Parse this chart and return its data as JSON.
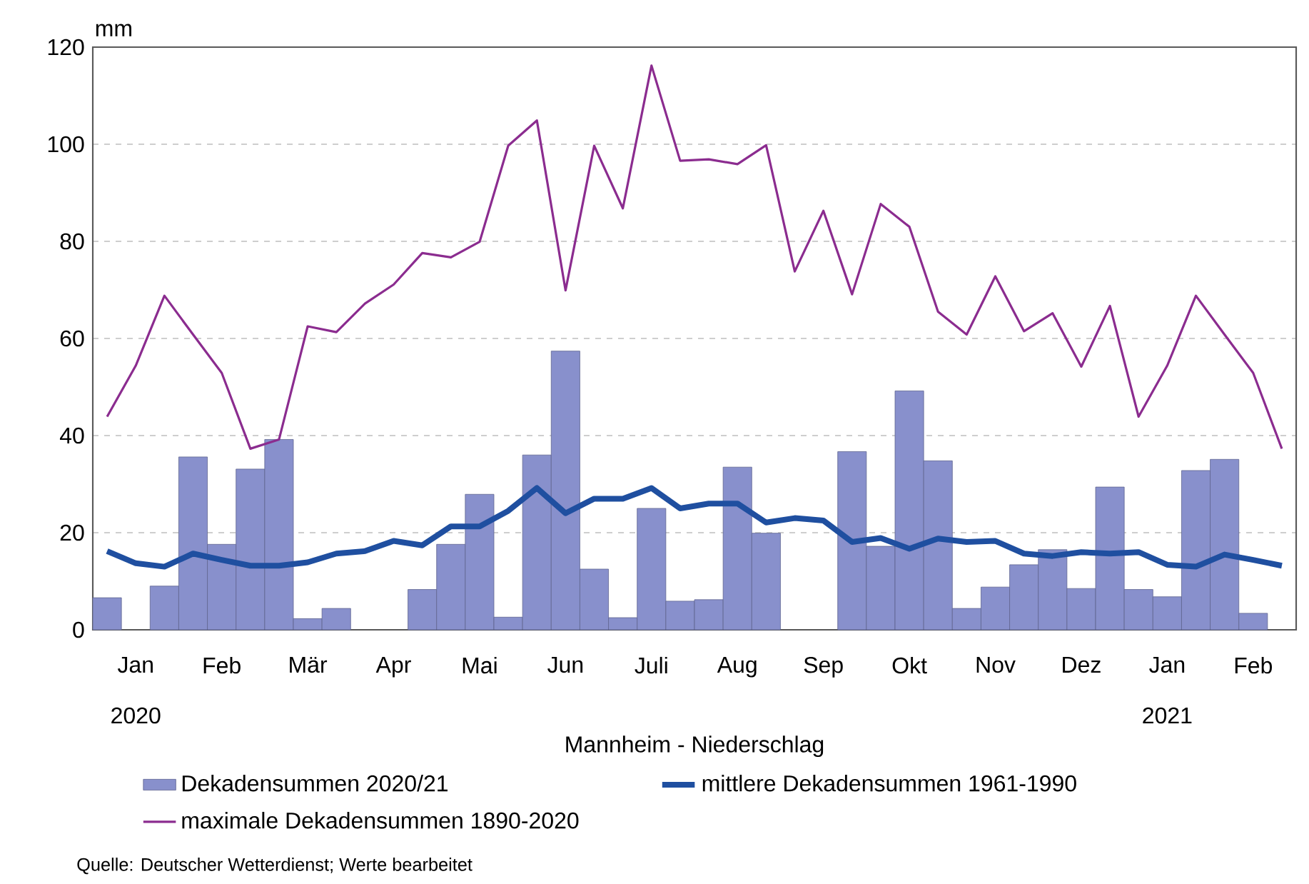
{
  "chart_data": {
    "type": "bar",
    "title": "Mannheim - Niederschlag",
    "ylabel": "mm",
    "categories": [
      null,
      "Jan",
      null,
      null,
      "Feb",
      null,
      null,
      "Mär",
      null,
      null,
      "Apr",
      null,
      null,
      "Mai",
      null,
      null,
      "Jun",
      null,
      null,
      "Juli",
      null,
      null,
      "Aug",
      null,
      null,
      "Sep",
      null,
      null,
      "Okt",
      null,
      null,
      "Nov",
      null,
      null,
      "Dez",
      null,
      null,
      "Jan",
      null,
      null,
      "Feb",
      null
    ],
    "series": [
      {
        "name": "Dekadensummen 2020/21",
        "color": "#8890cc",
        "values": [
          6.6,
          null,
          9.0,
          35.6,
          17.6,
          33.1,
          39.2,
          2.3,
          4.4,
          null,
          null,
          8.3,
          17.6,
          27.9,
          2.6,
          36.0,
          57.4,
          12.5,
          2.5,
          25.0,
          5.9,
          6.2,
          33.5,
          19.9,
          null,
          null,
          36.7,
          17.2,
          49.2,
          34.8,
          4.4,
          8.8,
          13.4,
          16.5,
          8.5,
          29.4,
          8.3,
          6.8,
          32.8,
          35.1,
          3.4,
          null
        ]
      },
      {
        "name": "mittlere Dekadensummen 1961-1990",
        "type": "line",
        "color": "#1f4fa0",
        "values": [
          16.2,
          13.7,
          13.0,
          15.7,
          14.4,
          13.2,
          13.2,
          13.9,
          15.7,
          16.2,
          18.3,
          17.4,
          21.3,
          21.3,
          24.5,
          29.2,
          24.0,
          27.0,
          27.0,
          29.2,
          25.0,
          26.0,
          26.0,
          22.1,
          23.0,
          22.5,
          18.1,
          18.9,
          16.7,
          18.8,
          18.1,
          18.3,
          15.7,
          15.2,
          16.0,
          15.7,
          16.0,
          13.4,
          13.0,
          15.5,
          14.4,
          13.2
        ]
      },
      {
        "name": "maximale Dekadensummen 1890-2020",
        "type": "line",
        "color": "#8b2c8f",
        "values": [
          43.9,
          54.4,
          68.8,
          60.8,
          52.9,
          37.3,
          39.2,
          62.5,
          61.3,
          67.2,
          71.1,
          77.6,
          76.7,
          79.9,
          99.7,
          104.9,
          69.9,
          99.7,
          86.8,
          116.2,
          96.6,
          96.9,
          95.9,
          99.8,
          73.8,
          86.3,
          69.1,
          87.7,
          83.0,
          65.5,
          60.8,
          72.8,
          61.5,
          65.2,
          54.2,
          66.7,
          43.9,
          54.4,
          68.8,
          60.8,
          52.9,
          37.3
        ]
      }
    ],
    "ylim": [
      0,
      120
    ],
    "yticks": [
      0,
      20,
      40,
      60,
      80,
      100,
      120
    ],
    "grid": "y",
    "legend": "bottom",
    "annotations": [
      "2020",
      "2021",
      "Quelle: Deutscher Wetterdienst; Werte bearbeitet"
    ]
  }
}
